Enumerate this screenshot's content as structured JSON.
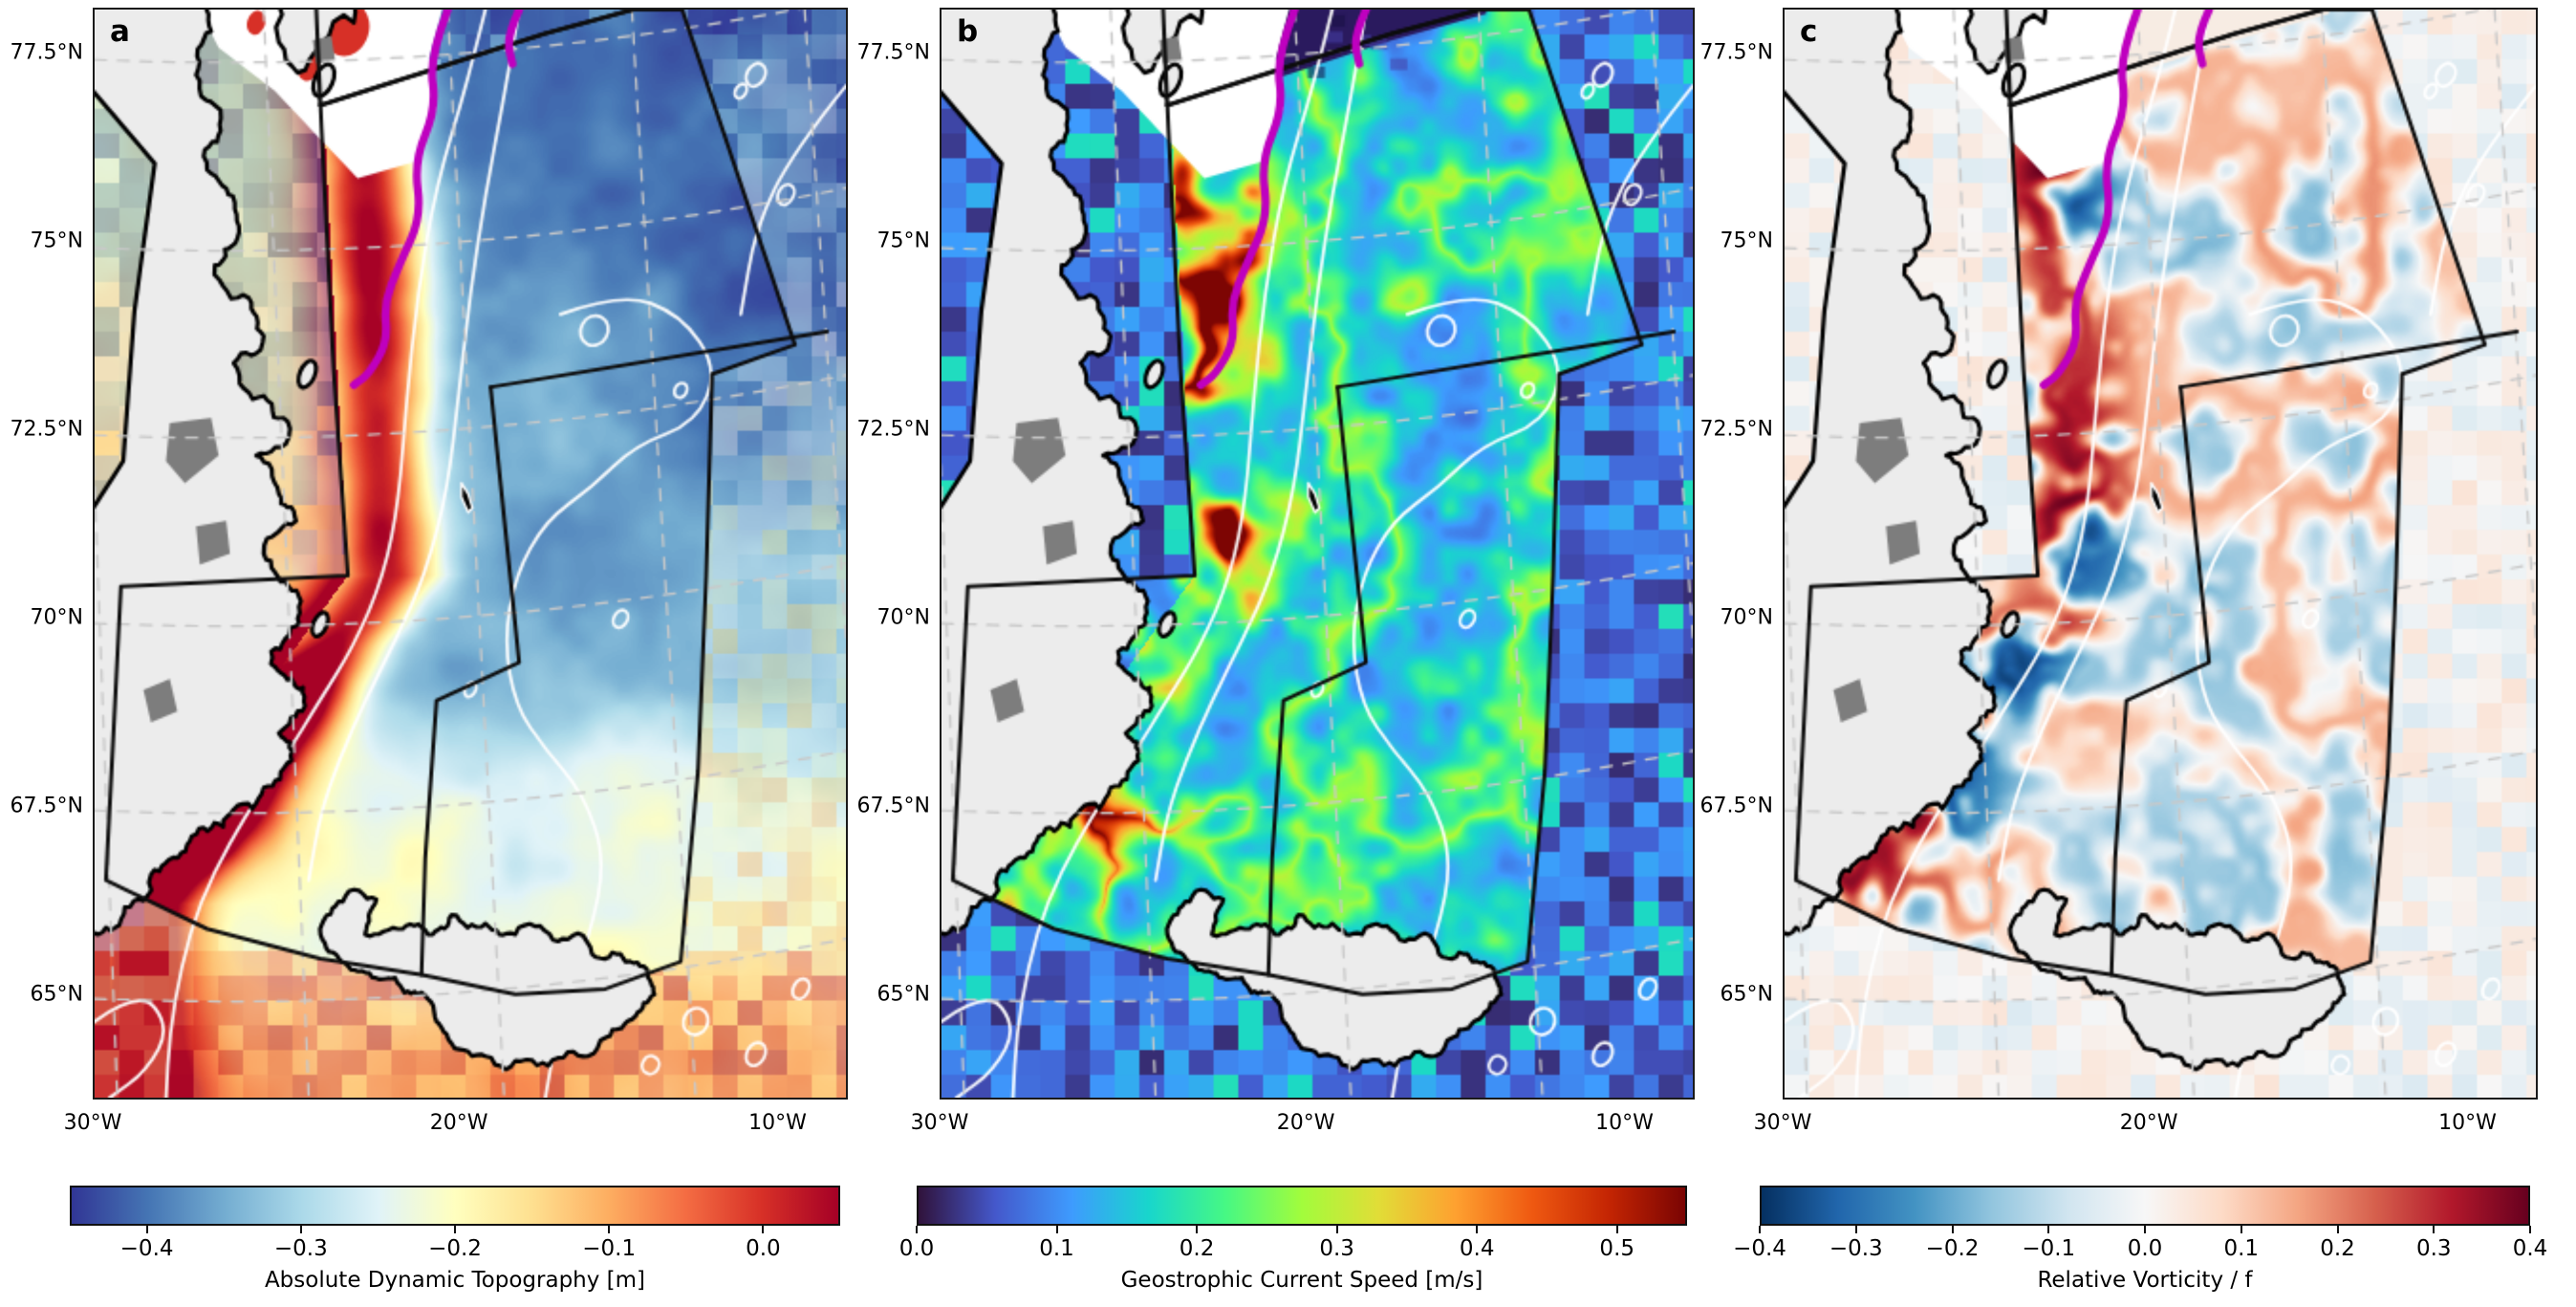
{
  "figure": {
    "kind": "three-panel ocean map figure",
    "region": "East Greenland / Iceland seas"
  },
  "axes": {
    "lat_tick_labels": [
      "77.5°N",
      "75°N",
      "72.5°N",
      "70°N",
      "67.5°N",
      "65°N"
    ],
    "lon_tick_labels": [
      "30°W",
      "20°W",
      "10°W"
    ]
  },
  "panels": [
    {
      "label": "a",
      "colorbar": {
        "title": "Absolute Dynamic Topography [m]",
        "vmin": -0.45,
        "vmax": 0.05,
        "tick_values": [
          -0.4,
          -0.3,
          -0.2,
          -0.1,
          0.0
        ],
        "tick_labels": [
          "−0.4",
          "−0.3",
          "−0.2",
          "−0.1",
          "0.0"
        ],
        "cmap": "RdYlBu_r"
      }
    },
    {
      "label": "b",
      "colorbar": {
        "title": "Geostrophic Current Speed [m/s]",
        "vmin": 0.0,
        "vmax": 0.55,
        "tick_values": [
          0.0,
          0.1,
          0.2,
          0.3,
          0.4,
          0.5
        ],
        "tick_labels": [
          "0.0",
          "0.1",
          "0.2",
          "0.3",
          "0.4",
          "0.5"
        ],
        "cmap": "turbo"
      }
    },
    {
      "label": "c",
      "colorbar": {
        "title": "Relative Vorticity / f",
        "vmin": -0.4,
        "vmax": 0.4,
        "tick_values": [
          -0.4,
          -0.3,
          -0.2,
          -0.1,
          0.0,
          0.1,
          0.2,
          0.3,
          0.4
        ],
        "tick_labels": [
          "−0.4",
          "−0.3",
          "−0.2",
          "−0.1",
          "0.0",
          "0.1",
          "0.2",
          "0.3",
          "0.4"
        ],
        "cmap": "RdBu_r"
      }
    }
  ],
  "colormaps": {
    "RdYlBu_r": [
      "#313695",
      "#4575b4",
      "#74add1",
      "#abd9e9",
      "#e0f3f8",
      "#ffffbf",
      "#fee090",
      "#fdae61",
      "#f46d43",
      "#d73027",
      "#a50026"
    ],
    "turbo": [
      "#30123b",
      "#4458cb",
      "#3e9bfe",
      "#18d6cc",
      "#46f884",
      "#a2fc3c",
      "#e1dd37",
      "#fea130",
      "#ef5911",
      "#c42503",
      "#7a0403"
    ],
    "RdBu_r": [
      "#053061",
      "#2166ac",
      "#4393c3",
      "#92c5de",
      "#d1e5f0",
      "#f7f7f7",
      "#fddbc7",
      "#f4a582",
      "#d6604d",
      "#b2182b",
      "#67001f"
    ]
  },
  "map_features": {
    "land_color": "#ececec",
    "coastline_color": "#000000",
    "no_data_land_color": "#7d7d7d",
    "graticule_color": "#c9c9c9",
    "bathymetry_contour_color": "#ffffff",
    "ice_edge_color": "#bf00bf",
    "sea_ice_color": "#ffffff",
    "model_domain_outline_color": "#0d0d0d",
    "land_masses": [
      "Greenland",
      "Iceland",
      "Jan Mayen"
    ]
  },
  "chart_data": [
    {
      "type": "heatmap",
      "panel": "a",
      "title": "Absolute Dynamic Topography [m]",
      "cmap": "RdYlBu_r",
      "value_range": [
        -0.45,
        0.05
      ],
      "colorbar_ticks": [
        -0.4,
        -0.3,
        -0.2,
        -0.1,
        0.0
      ],
      "x_ticks": [
        "30°W",
        "20°W",
        "10°W"
      ],
      "y_ticks": [
        "77.5°N",
        "75°N",
        "72.5°N",
        "70°N",
        "67.5°N",
        "65°N"
      ],
      "summary": "High ADT (~0 m, red) band along the East Greenland shelf and southwest of Denmark Strait; low ADT (~-0.4 m, dark blue) in the central Greenland/Iceland seas; moderate (~-0.15 m, yellow) around and south of Iceland; white bathymetry contours; black model-domain outline; magenta sea-ice edge in the northwest."
    },
    {
      "type": "heatmap",
      "panel": "b",
      "title": "Geostrophic Current Speed [m/s]",
      "cmap": "turbo",
      "value_range": [
        0.0,
        0.55
      ],
      "colorbar_ticks": [
        0.0,
        0.1,
        0.2,
        0.3,
        0.4,
        0.5
      ],
      "x_ticks": [
        "30°W",
        "20°W",
        "10°W"
      ],
      "y_ticks": [
        "77.5°N",
        "75°N",
        "72.5°N",
        "70°N",
        "67.5°N",
        "65°N"
      ],
      "summary": "Fast (0.3-0.55 m/s, orange/red) East Greenland Current jet and eddies along the shelf break and in the Denmark Strait overflow region southwest of Iceland; weak filamentary flow (0.05-0.2 m/s, blue/cyan) elsewhere; coarse pixelated altimetry-only field outside the black model domain."
    },
    {
      "type": "heatmap",
      "panel": "c",
      "title": "Relative Vorticity / f",
      "cmap": "RdBu_r",
      "value_range": [
        -0.4,
        0.4
      ],
      "colorbar_ticks": [
        -0.4,
        -0.3,
        -0.2,
        -0.1,
        0.0,
        0.1,
        0.2,
        0.3,
        0.4
      ],
      "x_ticks": [
        "30°W",
        "20°W",
        "10°W"
      ],
      "y_ticks": [
        "77.5°N",
        "75°N",
        "72.5°N",
        "70°N",
        "67.5°N",
        "65°N"
      ],
      "summary": "Alternating cyclonic (red, positive) and anticyclonic (blue, negative) eddies, strongest (|zeta/f| up to 0.4) along the East Greenland shelf and southwest of Denmark Strait; weak pale speckle in the interior; very pale coarse field outside the model domain."
    }
  ]
}
